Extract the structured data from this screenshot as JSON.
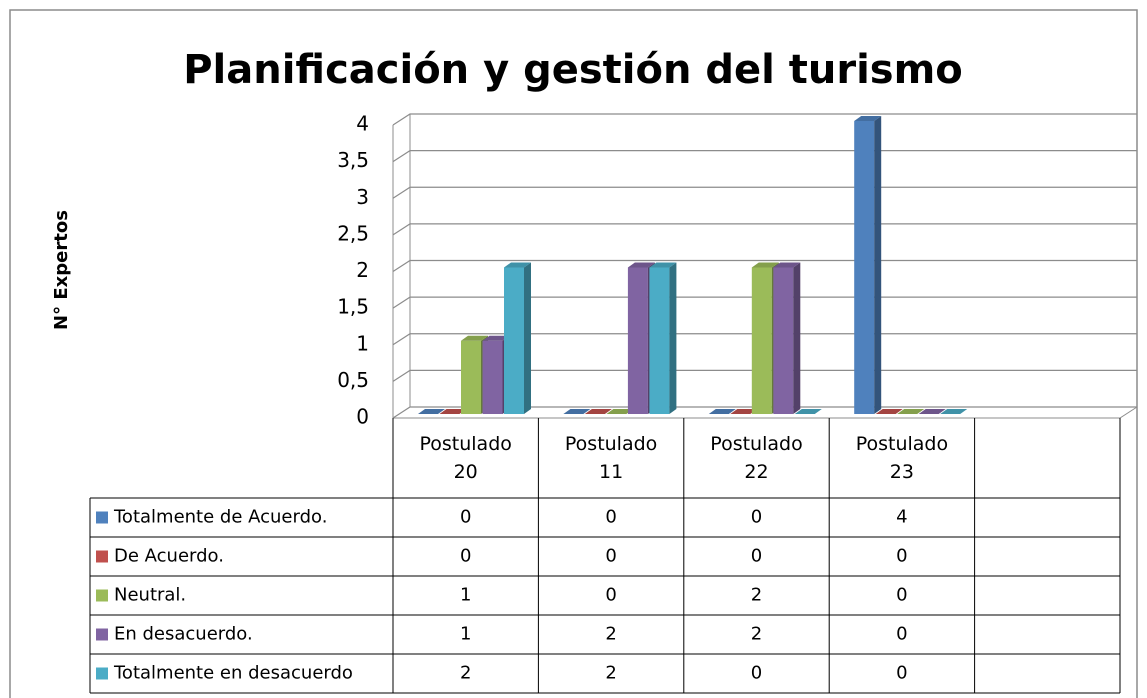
{
  "chart_data": {
    "type": "bar3d",
    "title": "Planificación y gestión del turismo",
    "y_label": "N° Expertos",
    "categories": [
      "Postulado 20",
      "Postulado 11",
      "Postulado 22",
      "Postulado 23"
    ],
    "series": [
      {
        "name": "Totalmente de Acuerdo.",
        "color": "#4f81bd",
        "values": [
          0,
          0,
          0,
          4
        ]
      },
      {
        "name": "De Acuerdo.",
        "color": "#c0504d",
        "values": [
          0,
          0,
          0,
          0
        ]
      },
      {
        "name": "Neutral.",
        "color": "#9bbb59",
        "values": [
          1,
          0,
          2,
          0
        ]
      },
      {
        "name": "En desacuerdo.",
        "color": "#8064a2",
        "values": [
          1,
          2,
          2,
          0
        ]
      },
      {
        "name": "Totalmente en desacuerdo",
        "color": "#4bacc6",
        "values": [
          2,
          2,
          0,
          0
        ]
      }
    ],
    "ylim": [
      0,
      4
    ],
    "yticks": [
      0,
      {
        "value": 0.5,
        "label": "0,5"
      },
      1,
      {
        "value": 1.5,
        "label": "1,5"
      },
      2,
      {
        "value": 2.5,
        "label": "2,5"
      },
      3,
      {
        "value": 3.5,
        "label": "3,5"
      },
      4
    ],
    "grid": true
  }
}
